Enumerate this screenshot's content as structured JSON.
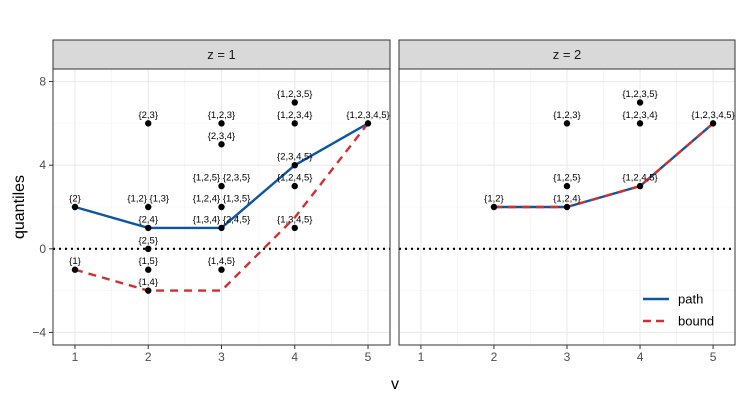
{
  "chart_data": {
    "type": "scatter",
    "xlabel": "v",
    "ylabel": "quantiles",
    "xlim": [
      0.7,
      5.3
    ],
    "ylim": [
      -4.6,
      8.6
    ],
    "xticks": [
      1,
      2,
      3,
      4,
      5
    ],
    "yticks": [
      -4,
      0,
      4,
      8
    ],
    "reference_line_y": 0,
    "grid": true,
    "legend_position": "bottom-right",
    "legend": [
      {
        "key": "path",
        "label": "path",
        "color": "#0b55a3",
        "dash": "solid"
      },
      {
        "key": "bound",
        "label": "bound",
        "color": "#d32f2f",
        "dash": "dashed"
      }
    ],
    "panels": [
      {
        "strip": "z = 1",
        "points": [
          {
            "x": 1,
            "y": 2,
            "label": "{2}"
          },
          {
            "x": 1,
            "y": -1,
            "label": "{1}"
          },
          {
            "x": 2,
            "y": 6,
            "label": "{2,3}"
          },
          {
            "x": 2,
            "y": 2,
            "label": "{1,2} {1,3}"
          },
          {
            "x": 2,
            "y": 1,
            "label": "{2,4}"
          },
          {
            "x": 2,
            "y": 0,
            "label": "{2,5}"
          },
          {
            "x": 2,
            "y": -1,
            "label": "{1,5}"
          },
          {
            "x": 2,
            "y": -2,
            "label": "{1,4}"
          },
          {
            "x": 3,
            "y": 6,
            "label": "{1,2,3}"
          },
          {
            "x": 3,
            "y": 5,
            "label": "{2,3,4}"
          },
          {
            "x": 3,
            "y": 3,
            "label": "{1,2,5} {2,3,5}"
          },
          {
            "x": 3,
            "y": 2,
            "label": "{1,2,4} {1,3,5}"
          },
          {
            "x": 3,
            "y": 1,
            "label": "{1,3,4} {2,4,5}"
          },
          {
            "x": 3,
            "y": -1,
            "label": "{1,4,5}"
          },
          {
            "x": 4,
            "y": 7,
            "label": "{1,2,3,5}"
          },
          {
            "x": 4,
            "y": 6,
            "label": "{1,2,3,4}"
          },
          {
            "x": 4,
            "y": 4,
            "label": "{2,3,4,5}"
          },
          {
            "x": 4,
            "y": 3,
            "label": "{1,2,4,5}"
          },
          {
            "x": 4,
            "y": 1,
            "label": "{1,3,4,5}"
          },
          {
            "x": 5,
            "y": 6,
            "label": "{1,2,3,4,5}"
          }
        ],
        "series": [
          {
            "key": "path",
            "x": [
              1,
              2,
              3,
              4,
              5
            ],
            "y": [
              2,
              1,
              1,
              4,
              6
            ]
          },
          {
            "key": "bound",
            "x": [
              1,
              2,
              3,
              4,
              5
            ],
            "y": [
              -1,
              -2,
              -2,
              1.5,
              6
            ]
          }
        ]
      },
      {
        "strip": "z = 2",
        "points": [
          {
            "x": 2,
            "y": 2,
            "label": "{1,2}"
          },
          {
            "x": 3,
            "y": 6,
            "label": "{1,2,3}"
          },
          {
            "x": 3,
            "y": 3,
            "label": "{1,2,5}"
          },
          {
            "x": 3,
            "y": 2,
            "label": "{1,2,4}"
          },
          {
            "x": 4,
            "y": 7,
            "label": "{1,2,3,5}"
          },
          {
            "x": 4,
            "y": 6,
            "label": "{1,2,3,4}"
          },
          {
            "x": 4,
            "y": 3,
            "label": "{1,2,4,5}"
          },
          {
            "x": 5,
            "y": 6,
            "label": "{1,2,3,4,5}"
          }
        ],
        "series": [
          {
            "key": "path",
            "x": [
              2,
              3,
              4,
              5
            ],
            "y": [
              2,
              2,
              3,
              6
            ]
          },
          {
            "key": "bound",
            "x": [
              2,
              3,
              4,
              5
            ],
            "y": [
              2,
              2,
              3,
              6
            ]
          }
        ]
      }
    ]
  }
}
